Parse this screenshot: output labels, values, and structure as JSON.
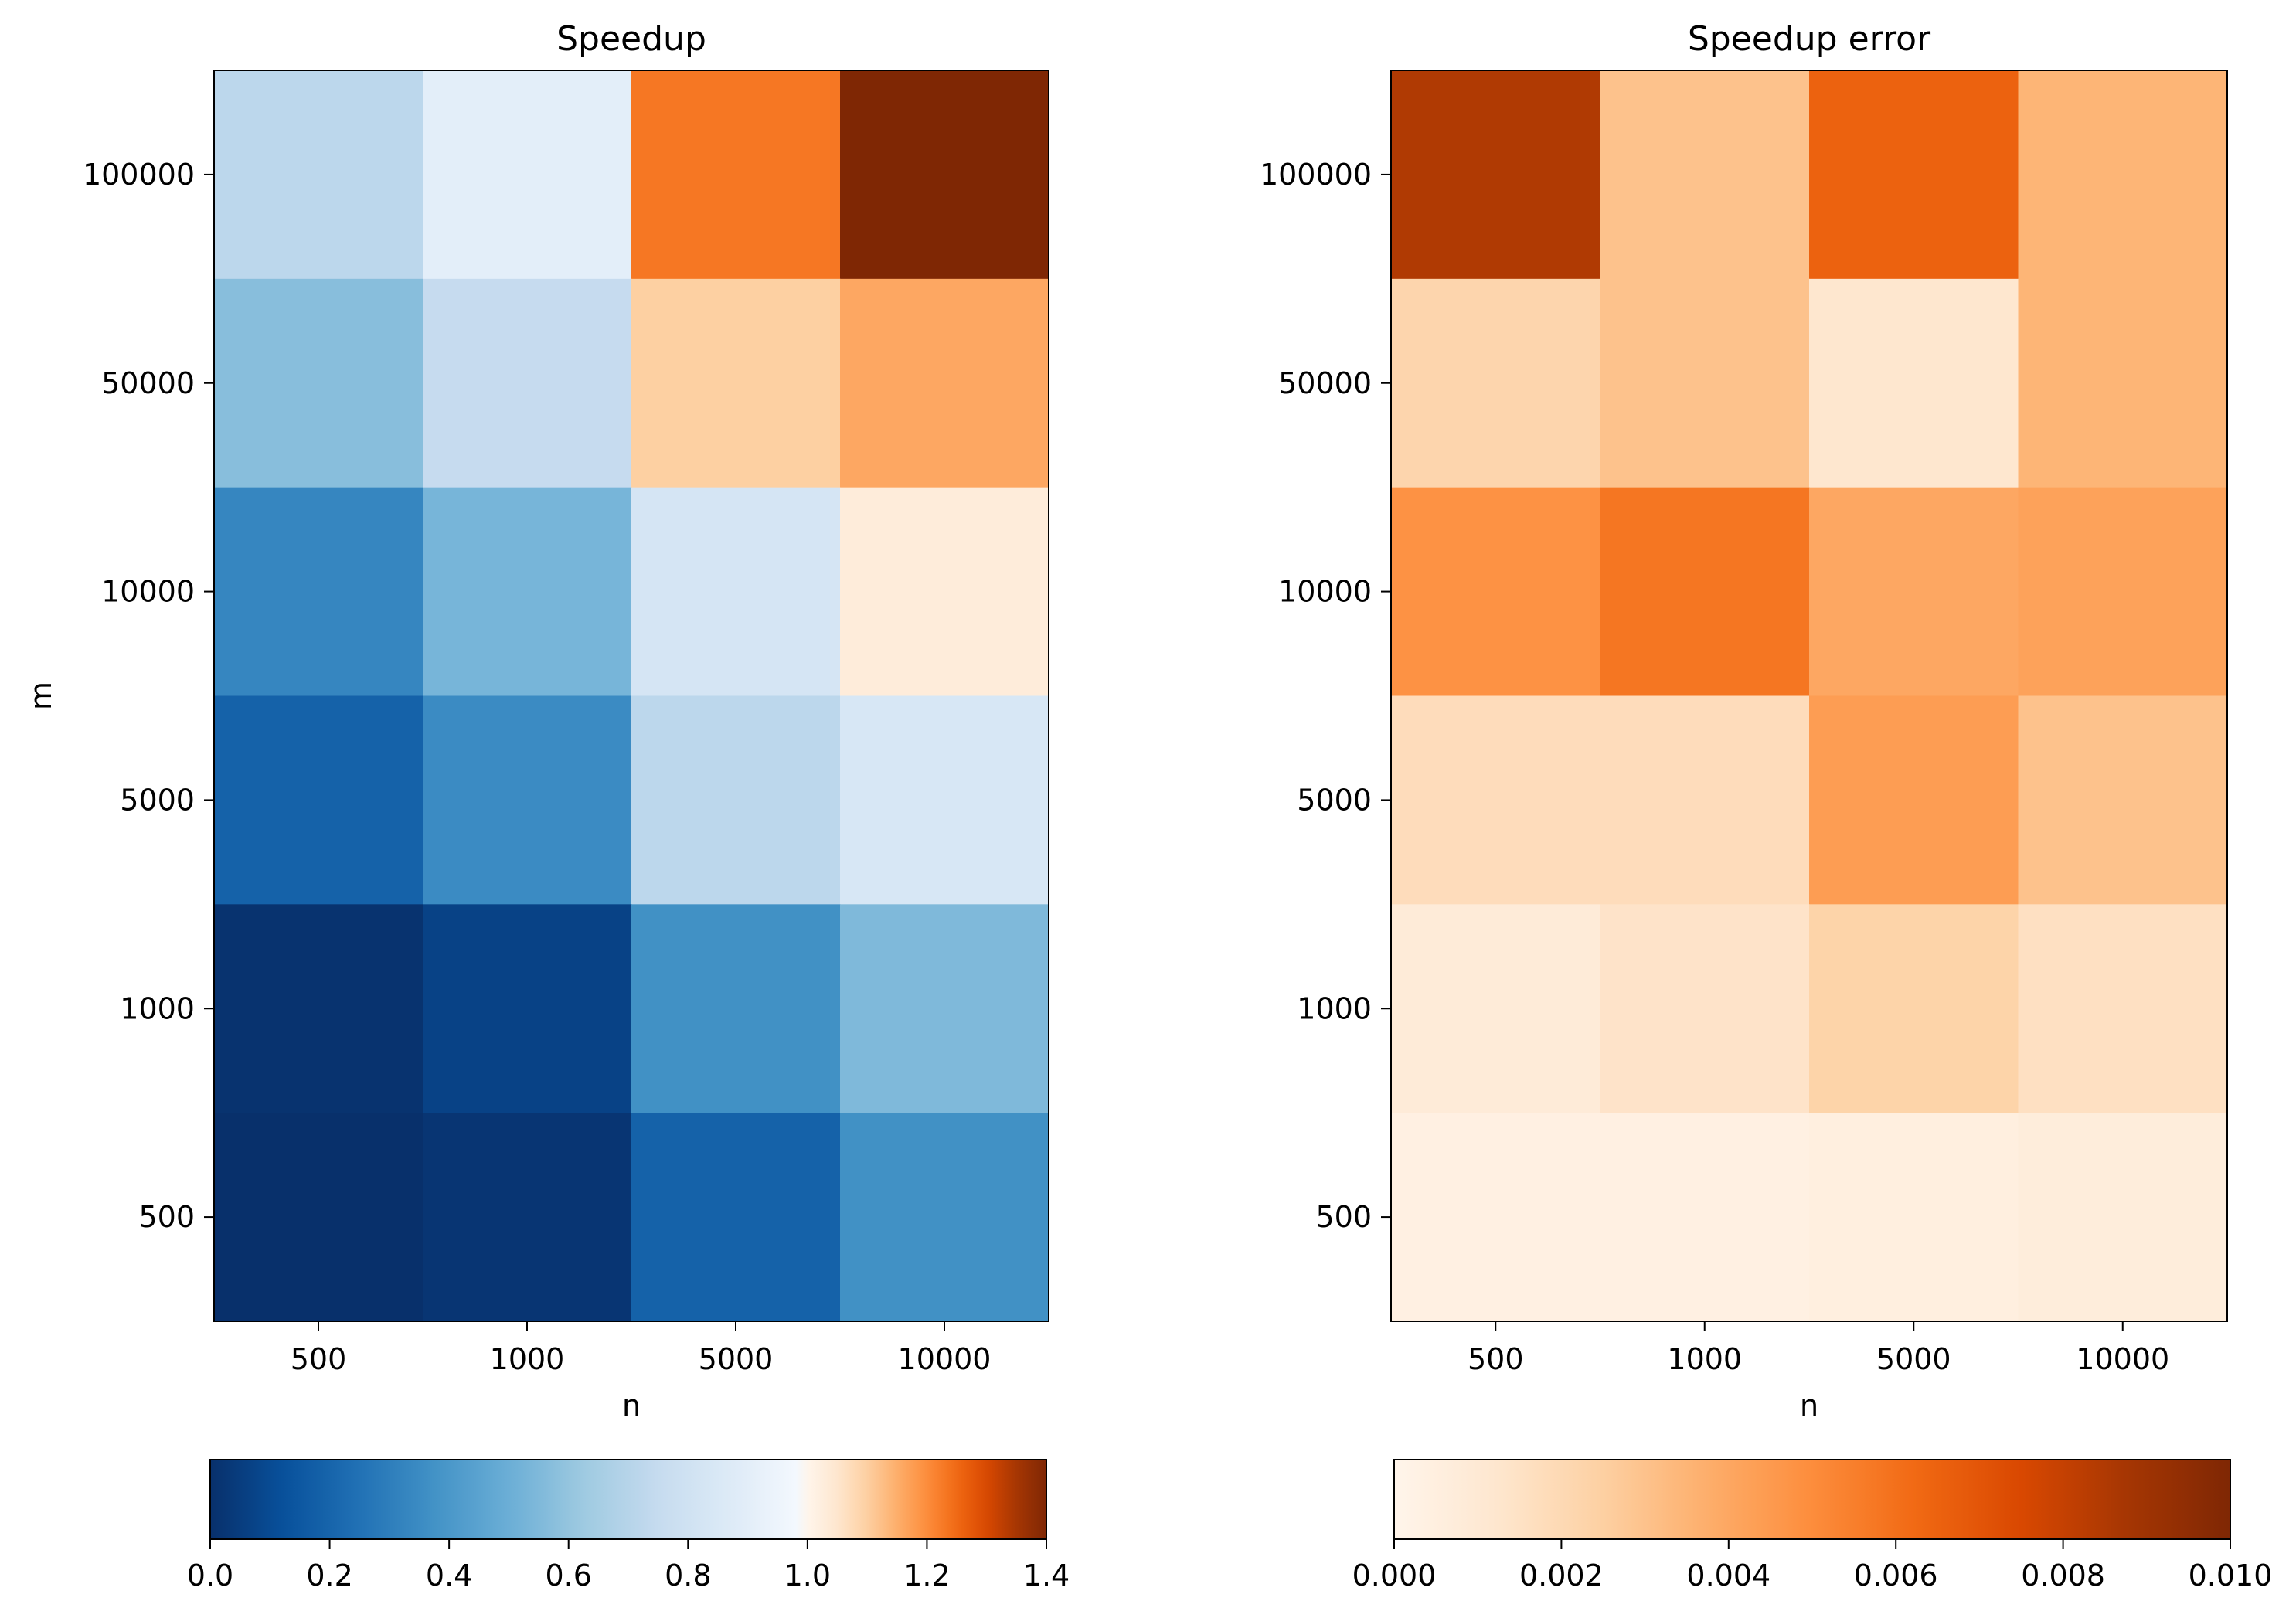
{
  "chart_data": [
    {
      "type": "heatmap",
      "title": "Speedup",
      "xlabel": "n",
      "ylabel": "m",
      "x_categories": [
        "500",
        "1000",
        "5000",
        "10000"
      ],
      "y_categories": [
        "100000",
        "50000",
        "10000",
        "5000",
        "1000",
        "500"
      ],
      "values": [
        [
          0.72,
          0.9,
          1.23,
          1.4
        ],
        [
          0.57,
          0.75,
          1.1,
          1.16
        ],
        [
          0.33,
          0.53,
          0.83,
          1.03
        ],
        [
          0.19,
          0.35,
          0.72,
          0.84
        ],
        [
          0.01,
          0.07,
          0.37,
          0.55
        ],
        [
          0.0,
          0.02,
          0.19,
          0.37
        ]
      ],
      "colorbar": {
        "vmin": 0.0,
        "vmax": 1.4,
        "ticks": [
          0.0,
          0.2,
          0.4,
          0.6,
          0.8,
          1.0,
          1.2,
          1.4
        ],
        "tick_labels": [
          "0.0",
          "0.2",
          "0.4",
          "0.6",
          "0.8",
          "1.0",
          "1.2",
          "1.4"
        ],
        "orientation": "horizontal",
        "placement": "bottom"
      },
      "colormap": "blue-white-orange diverging (Blues reversed below 1.0, Oranges above 1.0)"
    },
    {
      "type": "heatmap",
      "title": "Speedup error",
      "xlabel": "n",
      "ylabel": "",
      "x_categories": [
        "500",
        "1000",
        "5000",
        "10000"
      ],
      "y_categories": [
        "100000",
        "50000",
        "10000",
        "5000",
        "1000",
        "500"
      ],
      "values": [
        [
          0.0085,
          0.003,
          0.0065,
          0.0035
        ],
        [
          0.0022,
          0.003,
          0.0012,
          0.0035
        ],
        [
          0.0048,
          0.0058,
          0.004,
          0.0042
        ],
        [
          0.0018,
          0.0018,
          0.0044,
          0.003
        ],
        [
          0.0008,
          0.0014,
          0.0023,
          0.0016
        ],
        [
          0.0004,
          0.0004,
          0.0005,
          0.0007
        ]
      ],
      "colorbar": {
        "vmin": 0.0,
        "vmax": 0.01,
        "ticks": [
          0.0,
          0.002,
          0.004,
          0.006,
          0.008,
          0.01
        ],
        "tick_labels": [
          "0.000",
          "0.002",
          "0.004",
          "0.006",
          "0.008",
          "0.010"
        ],
        "orientation": "horizontal",
        "placement": "bottom"
      },
      "colormap": "Oranges"
    }
  ]
}
